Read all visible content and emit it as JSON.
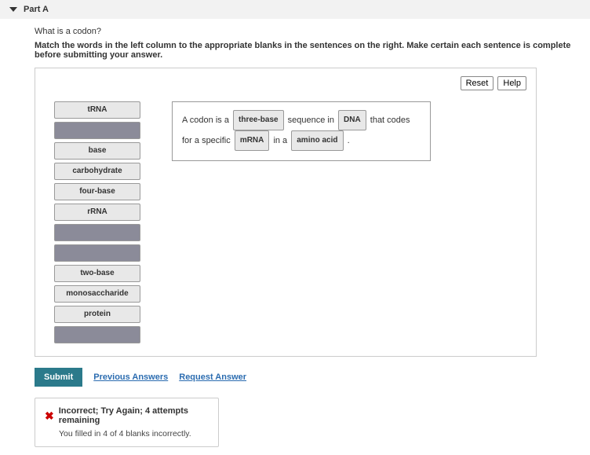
{
  "header": {
    "part_label": "Part A"
  },
  "question": "What is a codon?",
  "instruction": "Match the words in the left column to the appropriate blanks in the sentences on the right. Make certain each sentence is complete before submitting your answer.",
  "buttons": {
    "reset": "Reset",
    "help": "Help",
    "submit": "Submit"
  },
  "links": {
    "previous": "Previous Answers",
    "request": "Request Answer"
  },
  "tiles": [
    {
      "label": "tRNA",
      "filled": true
    },
    {
      "label": "",
      "filled": false
    },
    {
      "label": "base",
      "filled": true
    },
    {
      "label": "carbohydrate",
      "filled": true
    },
    {
      "label": "four-base",
      "filled": true
    },
    {
      "label": "rRNA",
      "filled": true
    },
    {
      "label": "",
      "filled": false
    },
    {
      "label": "",
      "filled": false
    },
    {
      "label": "two-base",
      "filled": true
    },
    {
      "label": "monosaccharide",
      "filled": true
    },
    {
      "label": "protein",
      "filled": true
    },
    {
      "label": "",
      "filled": false
    }
  ],
  "sentence": {
    "t1": "A codon is a",
    "chip1": "three-base",
    "t2": "sequence in",
    "chip2": "DNA",
    "t3": "that codes for a specific",
    "chip3": "mRNA",
    "t4": "in a",
    "chip4": "amino acid",
    "t5": "."
  },
  "feedback": {
    "title": "Incorrect; Try Again; 4 attempts remaining",
    "sub": "You filled in 4 of 4 blanks incorrectly."
  }
}
